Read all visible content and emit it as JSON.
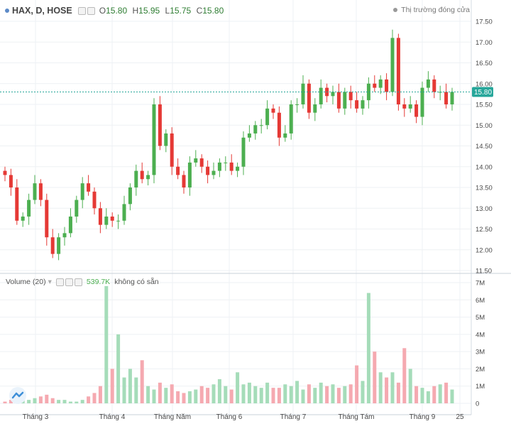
{
  "header": {
    "symbol": "HAX, D, HOSE",
    "open_label": "O",
    "open": "15.80",
    "high_label": "H",
    "high": "15.95",
    "low_label": "L",
    "low": "15.75",
    "close_label": "C",
    "close": "15.80",
    "market_status": "Thị trường đóng cửa"
  },
  "volume_header": {
    "label": "Volume (20)",
    "value": "539.7K",
    "note": "không có sẵn"
  },
  "colors": {
    "up": "#4caf50",
    "down": "#e53935",
    "up_volume": "#a5dcb9",
    "down_volume": "#f5a9b0",
    "last_price_line": "#26a69a",
    "grid": "#eef1f4"
  },
  "chart_data": {
    "type": "candlestick",
    "price_axis": {
      "ticks": [
        "11.50",
        "12.00",
        "12.50",
        "13.00",
        "13.50",
        "14.00",
        "14.50",
        "15.00",
        "15.50",
        "16.00",
        "16.50",
        "17.00",
        "17.50"
      ],
      "ylim": [
        11.5,
        17.5
      ],
      "last_price": 15.8,
      "last_price_label": "15.80"
    },
    "volume_axis": {
      "ticks": [
        "0",
        "1M",
        "2M",
        "3M",
        "4M",
        "5M",
        "6M",
        "7M"
      ],
      "ylim": [
        0,
        7000000
      ]
    },
    "x_axis_labels": [
      "Tháng 3",
      "Tháng 4",
      "Tháng Năm",
      "Tháng 6",
      "Tháng 7",
      "Tháng Tám",
      "Tháng 9",
      "25"
    ],
    "closes": [
      13.8,
      13.5,
      12.7,
      12.8,
      13.2,
      13.6,
      13.2,
      12.3,
      11.9,
      12.3,
      12.4,
      12.8,
      13.2,
      13.6,
      13.4,
      13.0,
      12.6,
      12.8,
      12.7,
      12.7,
      13.1,
      13.5,
      13.9,
      13.7,
      13.8,
      15.5,
      14.5,
      14.8,
      14.0,
      13.8,
      13.5,
      14.1,
      14.2,
      14.0,
      13.8,
      13.9,
      14.1,
      14.1,
      13.9,
      14.0,
      14.7,
      14.8,
      15.0,
      15.0,
      15.4,
      15.3,
      14.7,
      14.8,
      15.5,
      15.5,
      16.0,
      15.3,
      15.5,
      15.9,
      15.7,
      15.8,
      15.4,
      15.8,
      15.6,
      15.4,
      15.6,
      16.0,
      15.9,
      16.1,
      15.8,
      17.1,
      15.5,
      15.4,
      15.5,
      15.2,
      15.9,
      16.1,
      15.8,
      15.8,
      15.5,
      15.8
    ],
    "volumes": [
      0.1,
      0.2,
      0.3,
      0.2,
      0.2,
      0.3,
      0.4,
      0.5,
      0.3,
      0.2,
      0.2,
      0.1,
      0.1,
      0.2,
      0.4,
      0.6,
      1.0,
      6.8,
      2.0,
      4.0,
      1.5,
      2.0,
      1.5,
      2.5,
      1.0,
      0.8,
      1.2,
      0.9,
      1.1,
      0.7,
      0.6,
      0.7,
      0.8,
      1.0,
      0.9,
      1.1,
      1.4,
      1.0,
      0.8,
      1.8,
      1.1,
      1.2,
      1.0,
      0.9,
      1.2,
      0.9,
      0.9,
      1.1,
      1.0,
      1.3,
      0.8,
      1.1,
      0.9,
      1.2,
      1.0,
      1.1,
      0.9,
      1.0,
      1.1,
      2.2,
      1.3,
      6.4,
      3.0,
      1.8,
      1.5,
      1.8,
      1.2,
      3.2,
      2.0,
      1.0,
      0.9,
      0.7,
      1.0,
      1.1,
      1.2,
      0.8
    ]
  }
}
